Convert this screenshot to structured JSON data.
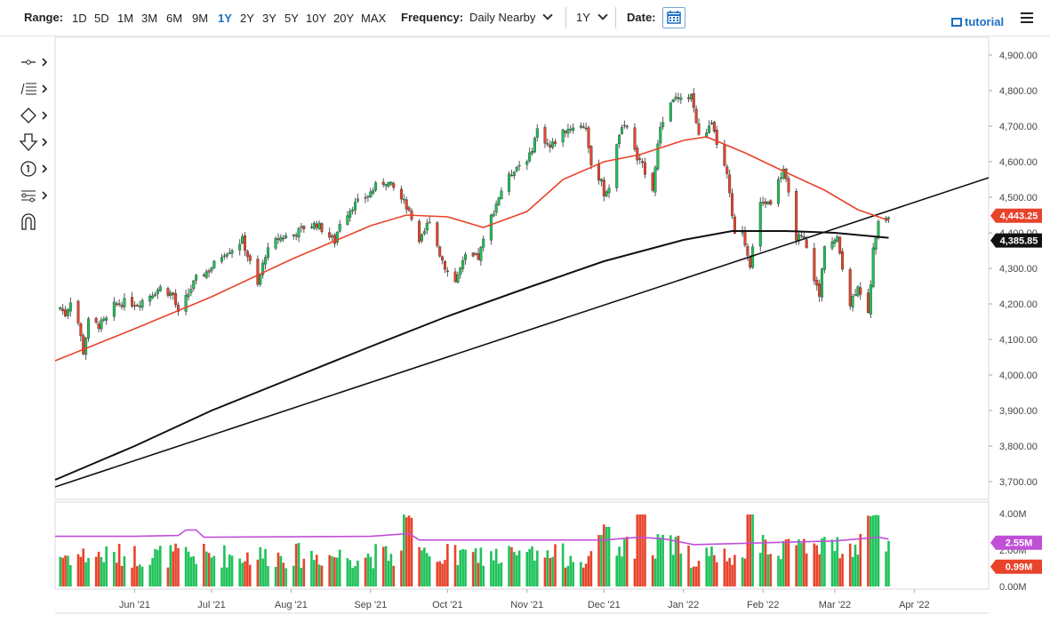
{
  "toolbar": {
    "range_label": "Range:",
    "ranges": [
      "1D",
      "5D",
      "1M",
      "3M",
      "6M",
      "9M",
      "1Y",
      "2Y",
      "3Y",
      "5Y",
      "10Y",
      "20Y",
      "MAX"
    ],
    "active_range": "1Y",
    "frequency_label": "Frequency:",
    "frequency_value": "Daily Nearby",
    "period_value": "1Y",
    "date_label": "Date:",
    "tutorial_label": "tutorial"
  },
  "sidebar": {
    "tools": [
      "line-tool-icon",
      "fib-tool-icon",
      "shape-tool-icon",
      "arrow-tool-icon",
      "counter-tool-icon",
      "measure-tool-icon",
      "magnet-icon"
    ]
  },
  "colors": {
    "up": "#1ec25a",
    "down": "#e8432b",
    "ma50": "#e8432b",
    "ma200": "#111111",
    "volume_ma": "#c04fd8",
    "price_badge": "#e8432b",
    "ma_badge": "#111111",
    "vol_badge": "#c04fd8",
    "vol_last_badge": "#e8432b"
  },
  "chart_data": {
    "type": "candlestick",
    "price_axis": {
      "ylim": [
        3650,
        4950
      ],
      "ticks": [
        "4,900.00",
        "4,800.00",
        "4,700.00",
        "4,600.00",
        "4,500.00",
        "4,400.00",
        "4,300.00",
        "4,200.00",
        "4,100.00",
        "4,000.00",
        "3,900.00",
        "3,800.00",
        "3,700.00"
      ],
      "tick_values": [
        4900,
        4800,
        4700,
        4600,
        4500,
        4400,
        4300,
        4200,
        4100,
        4000,
        3900,
        3800,
        3700
      ]
    },
    "x_axis": {
      "labels": [
        "Jun '21",
        "Jul '21",
        "Aug '21",
        "Sep '21",
        "Oct '21",
        "Nov '21",
        "Dec '21",
        "Jan '22",
        "Feb '22",
        "Mar '22",
        "Apr '22"
      ],
      "dates": [
        "2021-06-01",
        "2021-07-01",
        "2021-08-01",
        "2021-09-01",
        "2021-10-01",
        "2021-11-01",
        "2021-12-01",
        "2022-01-01",
        "2022-02-01",
        "2022-03-01",
        "2022-04-01"
      ],
      "range": [
        "2021-05-01",
        "2022-04-30"
      ]
    },
    "closes": [
      [
        "2021-05-03",
        4190
      ],
      [
        "2021-05-05",
        4170
      ],
      [
        "2021-05-08",
        4230
      ],
      [
        "2021-05-12",
        4065
      ],
      [
        "2021-05-14",
        4150
      ],
      [
        "2021-05-18",
        4140
      ],
      [
        "2021-05-21",
        4155
      ],
      [
        "2021-05-24",
        4195
      ],
      [
        "2021-05-28",
        4205
      ],
      [
        "2021-06-02",
        4200
      ],
      [
        "2021-06-07",
        4225
      ],
      [
        "2021-06-11",
        4245
      ],
      [
        "2021-06-16",
        4225
      ],
      [
        "2021-06-18",
        4170
      ],
      [
        "2021-06-22",
        4230
      ],
      [
        "2021-06-25",
        4270
      ],
      [
        "2021-06-30",
        4295
      ],
      [
        "2021-07-06",
        4345
      ],
      [
        "2021-07-09",
        4355
      ],
      [
        "2021-07-13",
        4380
      ],
      [
        "2021-07-19",
        4250
      ],
      [
        "2021-07-22",
        4340
      ],
      [
        "2021-07-27",
        4385
      ],
      [
        "2021-08-02",
        4395
      ],
      [
        "2021-08-06",
        4415
      ],
      [
        "2021-08-11",
        4425
      ],
      [
        "2021-08-18",
        4375
      ],
      [
        "2021-08-20",
        4430
      ],
      [
        "2021-08-25",
        4475
      ],
      [
        "2021-08-31",
        4505
      ],
      [
        "2021-09-03",
        4530
      ],
      [
        "2021-09-07",
        4545
      ],
      [
        "2021-09-10",
        4525
      ],
      [
        "2021-09-15",
        4475
      ],
      [
        "2021-09-20",
        4365
      ],
      [
        "2021-09-24",
        4440
      ],
      [
        "2021-09-28",
        4340
      ],
      [
        "2021-10-01",
        4290
      ],
      [
        "2021-10-04",
        4265
      ],
      [
        "2021-10-08",
        4330
      ],
      [
        "2021-10-13",
        4330
      ],
      [
        "2021-10-18",
        4445
      ],
      [
        "2021-10-22",
        4520
      ],
      [
        "2021-10-27",
        4580
      ],
      [
        "2021-11-02",
        4615
      ],
      [
        "2021-11-05",
        4690
      ],
      [
        "2021-11-10",
        4640
      ],
      [
        "2021-11-15",
        4685
      ],
      [
        "2021-11-19",
        4700
      ],
      [
        "2021-11-24",
        4700
      ],
      [
        "2021-11-26",
        4580
      ],
      [
        "2021-11-30",
        4550
      ],
      [
        "2021-12-01",
        4510
      ],
      [
        "2021-12-03",
        4525
      ],
      [
        "2021-12-07",
        4680
      ],
      [
        "2021-12-10",
        4700
      ],
      [
        "2021-12-14",
        4610
      ],
      [
        "2021-12-17",
        4575
      ],
      [
        "2021-12-20",
        4525
      ],
      [
        "2021-12-23",
        4700
      ],
      [
        "2021-12-28",
        4780
      ],
      [
        "2021-12-31",
        4770
      ],
      [
        "2022-01-04",
        4790
      ],
      [
        "2022-01-07",
        4670
      ],
      [
        "2022-01-12",
        4700
      ],
      [
        "2022-01-18",
        4560
      ],
      [
        "2022-01-21",
        4390
      ],
      [
        "2022-01-24",
        4400
      ],
      [
        "2022-01-27",
        4310
      ],
      [
        "2022-01-31",
        4480
      ],
      [
        "2022-02-04",
        4490
      ],
      [
        "2022-02-09",
        4580
      ],
      [
        "2022-02-14",
        4390
      ],
      [
        "2022-02-17",
        4380
      ],
      [
        "2022-02-23",
        4220
      ],
      [
        "2022-02-25",
        4370
      ],
      [
        "2022-03-02",
        4380
      ],
      [
        "2022-03-07",
        4200
      ],
      [
        "2022-03-10",
        4255
      ],
      [
        "2022-03-14",
        4170
      ],
      [
        "2022-03-16",
        4350
      ],
      [
        "2022-03-18",
        4440
      ],
      [
        "2022-03-22",
        4443.25
      ]
    ],
    "ma50": [
      [
        "2021-05-01",
        4040
      ],
      [
        "2021-06-01",
        4130
      ],
      [
        "2021-07-01",
        4220
      ],
      [
        "2021-08-01",
        4325
      ],
      [
        "2021-09-01",
        4420
      ],
      [
        "2021-09-15",
        4450
      ],
      [
        "2021-10-01",
        4445
      ],
      [
        "2021-10-15",
        4415
      ],
      [
        "2021-11-01",
        4460
      ],
      [
        "2021-11-15",
        4550
      ],
      [
        "2021-12-01",
        4600
      ],
      [
        "2021-12-15",
        4620
      ],
      [
        "2022-01-01",
        4660
      ],
      [
        "2022-01-10",
        4670
      ],
      [
        "2022-01-25",
        4625
      ],
      [
        "2022-02-10",
        4570
      ],
      [
        "2022-02-25",
        4520
      ],
      [
        "2022-03-10",
        4465
      ],
      [
        "2022-03-22",
        4435
      ]
    ],
    "ma200": [
      [
        "2021-05-01",
        3705
      ],
      [
        "2021-06-01",
        3800
      ],
      [
        "2021-07-01",
        3900
      ],
      [
        "2021-08-01",
        3990
      ],
      [
        "2021-09-01",
        4080
      ],
      [
        "2021-10-01",
        4165
      ],
      [
        "2021-11-01",
        4245
      ],
      [
        "2021-12-01",
        4320
      ],
      [
        "2022-01-01",
        4380
      ],
      [
        "2022-01-20",
        4405
      ],
      [
        "2022-02-10",
        4405
      ],
      [
        "2022-03-01",
        4400
      ],
      [
        "2022-03-22",
        4386
      ]
    ],
    "trendline": [
      [
        "2021-05-01",
        3685
      ],
      [
        "2022-04-30",
        4555
      ]
    ],
    "last_price": {
      "value": 4443.25,
      "label": "4,443.25"
    },
    "ma_last": {
      "value": 4385.85,
      "label": "4,385.85"
    },
    "volume": {
      "ylim": [
        0,
        4.0
      ],
      "ticks": [
        "4.00M",
        "2.00M",
        "0.00M"
      ],
      "tick_values": [
        4.0,
        2.0,
        0.0
      ],
      "ma_label": "2.55M",
      "ma_value": 2.55,
      "last_label": "0.99M",
      "last_value": 0.99,
      "ma_points": [
        [
          "2021-05-01",
          2.75
        ],
        [
          "2021-06-01",
          2.75
        ],
        [
          "2021-06-18",
          2.8
        ],
        [
          "2021-06-21",
          3.1
        ],
        [
          "2021-06-25",
          3.1
        ],
        [
          "2021-06-28",
          2.7
        ],
        [
          "2021-09-01",
          2.75
        ],
        [
          "2021-09-16",
          2.9
        ],
        [
          "2021-09-20",
          2.55
        ],
        [
          "2021-12-01",
          2.55
        ],
        [
          "2021-12-15",
          2.7
        ],
        [
          "2021-12-25",
          2.6
        ],
        [
          "2022-01-05",
          2.3
        ],
        [
          "2022-03-01",
          2.5
        ],
        [
          "2022-03-18",
          2.7
        ],
        [
          "2022-03-22",
          2.6
        ]
      ],
      "spikes": [
        [
          "2021-09-16",
          3.95
        ],
        [
          "2021-12-01",
          2.9
        ],
        [
          "2021-12-16",
          3.95
        ],
        [
          "2022-01-28",
          3.9
        ],
        [
          "2022-03-16",
          3.55
        ]
      ]
    }
  }
}
